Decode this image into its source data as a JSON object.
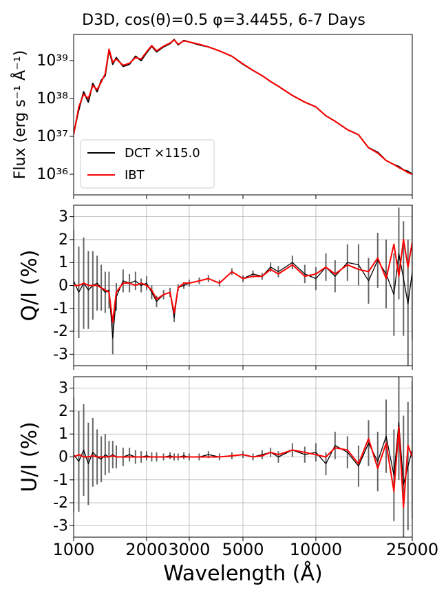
{
  "chart_data": [
    {
      "type": "line",
      "title": "D3D, cos(θ)=0.5 φ=3.4455, 6-7 Days",
      "ylabel": "Flux (erg s⁻¹ Å⁻¹)",
      "xscale": "log",
      "yscale": "log",
      "xlim": [
        1000,
        25000
      ],
      "ylim": [
        2.85e+35,
        4.9e+39
      ],
      "xticks": [
        1000,
        2000,
        3000,
        5000,
        10000,
        25000
      ],
      "yticks": [
        {
          "value": 1e+36,
          "label": "10³⁶"
        },
        {
          "value": 1e+37,
          "label": "10³⁷"
        },
        {
          "value": 1e+38,
          "label": "10³⁸"
        },
        {
          "value": 1e+39,
          "label": "10³⁹"
        }
      ],
      "grid": false,
      "legend": "lower left",
      "x": [
        1000,
        1050,
        1100,
        1150,
        1200,
        1250,
        1300,
        1350,
        1400,
        1450,
        1500,
        1600,
        1700,
        1800,
        1900,
        2000,
        2100,
        2200,
        2350,
        2500,
        2600,
        2700,
        2850,
        3000,
        3300,
        3600,
        4000,
        4500,
        5000,
        5500,
        6000,
        6500,
        7000,
        8000,
        9000,
        10000,
        11000,
        12000,
        13500,
        15000,
        16500,
        18000,
        19500,
        21000,
        22000,
        23000,
        24000,
        25000
      ],
      "series": [
        {
          "name": "DCT ×115.0",
          "color": "#000000",
          "values": [
            1.2e+37,
            5e+37,
            1.5e+38,
            8e+37,
            2.5e+38,
            1.5e+38,
            3e+38,
            4e+38,
            1.9e+39,
            8e+38,
            1.2e+39,
            7e+38,
            8e+38,
            1.3e+39,
            1e+39,
            1.6e+39,
            2.4e+39,
            1.7e+39,
            2.3e+39,
            2.8e+39,
            3.6e+39,
            2.6e+39,
            3.4e+39,
            3.1e+39,
            2.6e+39,
            2.3e+39,
            1.8e+39,
            1.3e+39,
            8e+38,
            5.5e+38,
            4e+38,
            2.8e+38,
            2.1e+38,
            1.2e+38,
            8e+37,
            6e+37,
            3.5e+37,
            2.5e+37,
            1.5e+37,
            1.1e+37,
            5e+36,
            3.8e+36,
            2.3e+36,
            1.8e+36,
            1.6e+36,
            1.3e+36,
            1.2e+36,
            1e+36
          ]
        },
        {
          "name": "IBT",
          "color": "#ff0000",
          "values": [
            1.1e+37,
            6e+37,
            1.3e+38,
            1e+38,
            2.2e+38,
            1.7e+38,
            2.7e+38,
            4.5e+38,
            2e+39,
            9e+38,
            1.1e+39,
            7.5e+38,
            8.5e+38,
            1.2e+39,
            1.1e+39,
            1.7e+39,
            2.5e+39,
            1.8e+39,
            2.4e+39,
            2.9e+39,
            3.5e+39,
            2.7e+39,
            3.3e+39,
            3.1e+39,
            2.7e+39,
            2.3e+39,
            1.8e+39,
            1.3e+39,
            8.2e+38,
            5.5e+38,
            4e+38,
            2.8e+38,
            2.1e+38,
            1.2e+38,
            8e+37,
            6e+37,
            3.5e+37,
            2.5e+37,
            1.5e+37,
            1.1e+37,
            5e+36,
            3.6e+36,
            2.3e+36,
            1.8e+36,
            1.5e+36,
            1.3e+36,
            1.1e+36,
            1e+36
          ]
        }
      ]
    },
    {
      "type": "line",
      "ylabel": "Q/I (%)",
      "xscale": "log",
      "xlim": [
        1000,
        25000
      ],
      "ylim": [
        -3.5,
        3.5
      ],
      "xticks": [
        1000,
        2000,
        3000,
        5000,
        10000,
        25000
      ],
      "yticks": [
        -3,
        -2,
        -1,
        0,
        1,
        2,
        3
      ],
      "grid": true,
      "x": [
        1000,
        1050,
        1100,
        1150,
        1200,
        1250,
        1300,
        1350,
        1400,
        1450,
        1500,
        1600,
        1700,
        1800,
        1900,
        2000,
        2100,
        2200,
        2350,
        2500,
        2600,
        2700,
        2850,
        3000,
        3300,
        3600,
        4000,
        4500,
        5000,
        5500,
        6000,
        6500,
        7000,
        8000,
        9000,
        10000,
        11000,
        12000,
        13500,
        15000,
        16500,
        18000,
        19500,
        21000,
        22000,
        23000,
        24000,
        25000
      ],
      "series": [
        {
          "color": "#000000",
          "error_color": "#666666",
          "values": [
            0.2,
            -0.3,
            0.1,
            -0.2,
            0,
            0.1,
            -0.1,
            -0.3,
            -0.2,
            -2.3,
            -0.5,
            0.2,
            0.1,
            0.2,
            0,
            0.1,
            -0.3,
            -0.7,
            -0.4,
            -0.3,
            -1.4,
            -0.1,
            0,
            0.1,
            0.2,
            0.3,
            0.1,
            0.6,
            0.3,
            0.5,
            0.4,
            0.8,
            0.6,
            1,
            0.5,
            0.3,
            0.8,
            0.4,
            1,
            0.9,
            0.2,
            1.1,
            0.5,
            -0.4,
            1.4,
            0.3,
            -0.8,
            0.6
          ],
          "errors": [
            2.2,
            2,
            2,
            1.7,
            1.5,
            1.2,
            1,
            0.9,
            0.8,
            0.7,
            0.6,
            0.5,
            0.4,
            0.4,
            0.3,
            0.3,
            0.3,
            0.25,
            0.2,
            0.2,
            0.2,
            0.15,
            0.15,
            0.15,
            0.15,
            0.15,
            0.15,
            0.15,
            0.15,
            0.15,
            0.15,
            0.2,
            0.25,
            0.3,
            0.4,
            0.5,
            0.6,
            0.7,
            0.8,
            0.9,
            1,
            1.2,
            1.5,
            1.8,
            2,
            2.5,
            2.8,
            3
          ]
        },
        {
          "color": "#ff0000",
          "values": [
            0,
            0,
            0.1,
            0,
            0,
            0,
            -0.1,
            -0.2,
            -0.3,
            -1.6,
            -0.3,
            0.1,
            0.1,
            0,
            0.1,
            0,
            -0.2,
            -0.6,
            -0.4,
            -0.3,
            -1.2,
            -0.1,
            0.1,
            0.1,
            0.2,
            0.3,
            0.1,
            0.6,
            0.3,
            0.4,
            0.4,
            0.7,
            0.5,
            0.9,
            0.4,
            0.5,
            0.8,
            0.5,
            0.9,
            0.7,
            0.6,
            1.2,
            0.3,
            1.8,
            0.4,
            2,
            0.8,
            1.9
          ]
        }
      ]
    },
    {
      "type": "line",
      "ylabel": "U/I (%)",
      "xlabel": "Wavelength (Å)",
      "xscale": "log",
      "xlim": [
        1000,
        25000
      ],
      "ylim": [
        -3.5,
        3.5
      ],
      "xticks": [
        1000,
        2000,
        3000,
        5000,
        10000,
        25000
      ],
      "yticks": [
        -3,
        -2,
        -1,
        0,
        1,
        2,
        3
      ],
      "grid": true,
      "x": [
        1000,
        1050,
        1100,
        1150,
        1200,
        1250,
        1300,
        1350,
        1400,
        1450,
        1500,
        1600,
        1700,
        1800,
        1900,
        2000,
        2100,
        2200,
        2350,
        2500,
        2600,
        2700,
        2850,
        3000,
        3300,
        3600,
        4000,
        4500,
        5000,
        5500,
        6000,
        6500,
        7000,
        8000,
        9000,
        10000,
        11000,
        12000,
        13500,
        15000,
        16500,
        18000,
        19500,
        21000,
        22000,
        23000,
        24000,
        25000
      ],
      "series": [
        {
          "color": "#000000",
          "error_color": "#666666",
          "values": [
            0.1,
            -0.2,
            0.3,
            -0.3,
            0.2,
            0,
            -0.1,
            0.1,
            0,
            0.1,
            0,
            0,
            0.1,
            0,
            0,
            0.05,
            0,
            0,
            0,
            0.05,
            0,
            0,
            0.05,
            0,
            0,
            0.1,
            0,
            0.05,
            0.1,
            0,
            0.1,
            0.2,
            0,
            0.3,
            0.1,
            0.2,
            -0.3,
            0.5,
            0.2,
            -0.4,
            0.6,
            -0.2,
            0.9,
            -0.8,
            1.5,
            -1.2,
            -0.4,
            0.3
          ],
          "errors": [
            2.5,
            2.2,
            2,
            1.8,
            1.5,
            1.2,
            1,
            0.9,
            0.7,
            0.6,
            0.5,
            0.4,
            0.3,
            0.3,
            0.25,
            0.2,
            0.2,
            0.2,
            0.15,
            0.15,
            0.15,
            0.15,
            0.15,
            0.15,
            0.15,
            0.15,
            0.15,
            0.15,
            0.15,
            0.15,
            0.2,
            0.2,
            0.25,
            0.3,
            0.35,
            0.4,
            0.5,
            0.6,
            0.7,
            0.9,
            1,
            1.3,
            1.6,
            2,
            2.5,
            3,
            2.8,
            3
          ]
        },
        {
          "color": "#ff0000",
          "values": [
            0,
            0.1,
            0,
            0,
            0.05,
            0,
            0,
            0,
            0,
            0.05,
            0,
            0,
            0,
            0,
            0,
            0,
            0,
            0,
            0,
            0,
            0,
            0,
            0,
            0,
            0,
            0,
            0,
            0.05,
            0.1,
            0,
            0.05,
            0.2,
            0.1,
            0.3,
            0.2,
            0.1,
            0,
            0.4,
            0.3,
            -0.3,
            0.8,
            -0.5,
            0.6,
            -1.5,
            1.3,
            -2.2,
            0.5,
            0
          ]
        }
      ]
    }
  ]
}
